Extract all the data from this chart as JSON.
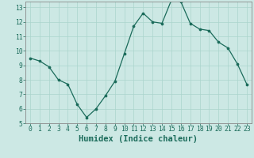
{
  "x": [
    0,
    1,
    2,
    3,
    4,
    5,
    6,
    7,
    8,
    9,
    10,
    11,
    12,
    13,
    14,
    15,
    16,
    17,
    18,
    19,
    20,
    21,
    22,
    23
  ],
  "y": [
    9.5,
    9.3,
    8.9,
    8.0,
    7.7,
    6.3,
    5.4,
    6.0,
    6.9,
    7.9,
    9.8,
    11.7,
    12.6,
    12.0,
    11.9,
    13.5,
    13.4,
    11.9,
    11.5,
    11.4,
    10.6,
    10.2,
    9.1,
    7.7
  ],
  "xlabel": "Humidex (Indice chaleur)",
  "xlim_min": -0.5,
  "xlim_max": 23.5,
  "ylim_min": 5,
  "ylim_max": 13.4,
  "yticks": [
    5,
    6,
    7,
    8,
    9,
    10,
    11,
    12,
    13
  ],
  "xticks": [
    0,
    1,
    2,
    3,
    4,
    5,
    6,
    7,
    8,
    9,
    10,
    11,
    12,
    13,
    14,
    15,
    16,
    17,
    18,
    19,
    20,
    21,
    22,
    23
  ],
  "bg_color": "#cce8e4",
  "grid_color": "#aad4cc",
  "line_color": "#1a6b5a",
  "marker_color": "#1a6b5a",
  "xlabel_color": "#1a6b5a",
  "tick_color": "#1a6b5a",
  "spine_color": "#888888",
  "tick_fontsize": 5.8,
  "xlabel_fontsize": 7.5
}
